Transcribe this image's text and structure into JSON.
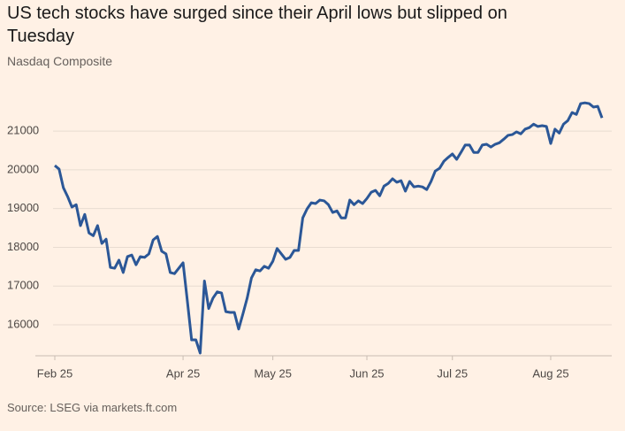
{
  "chart_data": {
    "type": "line",
    "title": "US tech stocks have surged since their April lows but slipped on Tuesday",
    "subtitle": "Nasdaq Composite",
    "source": "Source: LSEG via markets.ft.com",
    "categories": [
      "Feb 25",
      null,
      null,
      null,
      null,
      null,
      null,
      null,
      null,
      null,
      null,
      null,
      null,
      null,
      null,
      null,
      null,
      null,
      null,
      null,
      null,
      null,
      null,
      null,
      null,
      null,
      null,
      null,
      null,
      null,
      "Apr 25",
      null,
      null,
      null,
      null,
      null,
      null,
      null,
      null,
      null,
      null,
      null,
      null,
      null,
      null,
      null,
      null,
      null,
      null,
      null,
      null,
      "May 25",
      null,
      null,
      null,
      null,
      null,
      null,
      null,
      null,
      null,
      null,
      null,
      null,
      null,
      null,
      null,
      null,
      null,
      null,
      null,
      null,
      null,
      "Jun 25",
      null,
      null,
      null,
      null,
      null,
      null,
      null,
      null,
      null,
      null,
      null,
      null,
      null,
      null,
      null,
      null,
      null,
      null,
      null,
      "Jul 25",
      null,
      null,
      null,
      null,
      null,
      null,
      null,
      null,
      null,
      null,
      null,
      null,
      null,
      null,
      null,
      null,
      null,
      null,
      null,
      null,
      null,
      null,
      "Aug 25",
      null,
      null,
      null,
      null,
      null,
      null,
      null,
      null,
      null,
      null,
      null,
      null
    ],
    "series": [
      {
        "name": "Nasdaq Composite",
        "color": "#2b5797",
        "values": [
          20110,
          20020,
          19540,
          19310,
          19040,
          19100,
          18560,
          18850,
          18370,
          18300,
          18560,
          18100,
          18210,
          17480,
          17460,
          17670,
          17350,
          17760,
          17800,
          17550,
          17760,
          17740,
          17830,
          18190,
          18280,
          17900,
          17830,
          17350,
          17320,
          17460,
          17600,
          16620,
          15610,
          15610,
          15270,
          17130,
          16420,
          16690,
          16850,
          16820,
          16340,
          16320,
          16320,
          15890,
          16280,
          16690,
          17210,
          17420,
          17390,
          17510,
          17460,
          17640,
          17970,
          17830,
          17690,
          17740,
          17920,
          17920,
          18760,
          18990,
          19150,
          19130,
          19220,
          19200,
          19100,
          18900,
          18940,
          18760,
          18760,
          19220,
          19100,
          19200,
          19130,
          19260,
          19420,
          19470,
          19330,
          19580,
          19650,
          19770,
          19680,
          19720,
          19450,
          19700,
          19560,
          19580,
          19560,
          19490,
          19700,
          19970,
          20040,
          20220,
          20320,
          20410,
          20270,
          20450,
          20640,
          20640,
          20450,
          20450,
          20640,
          20660,
          20590,
          20660,
          20700,
          20790,
          20890,
          20910,
          20980,
          20930,
          21050,
          21090,
          21180,
          21120,
          21140,
          21120,
          20680,
          21050,
          20950,
          21180,
          21270,
          21480,
          21430,
          21710,
          21730,
          21710,
          21620,
          21640,
          21340
        ]
      }
    ],
    "ylim": [
      15200,
      22100
    ],
    "yticks": [
      16000,
      17000,
      18000,
      19000,
      20000,
      21000
    ],
    "grid": true
  }
}
